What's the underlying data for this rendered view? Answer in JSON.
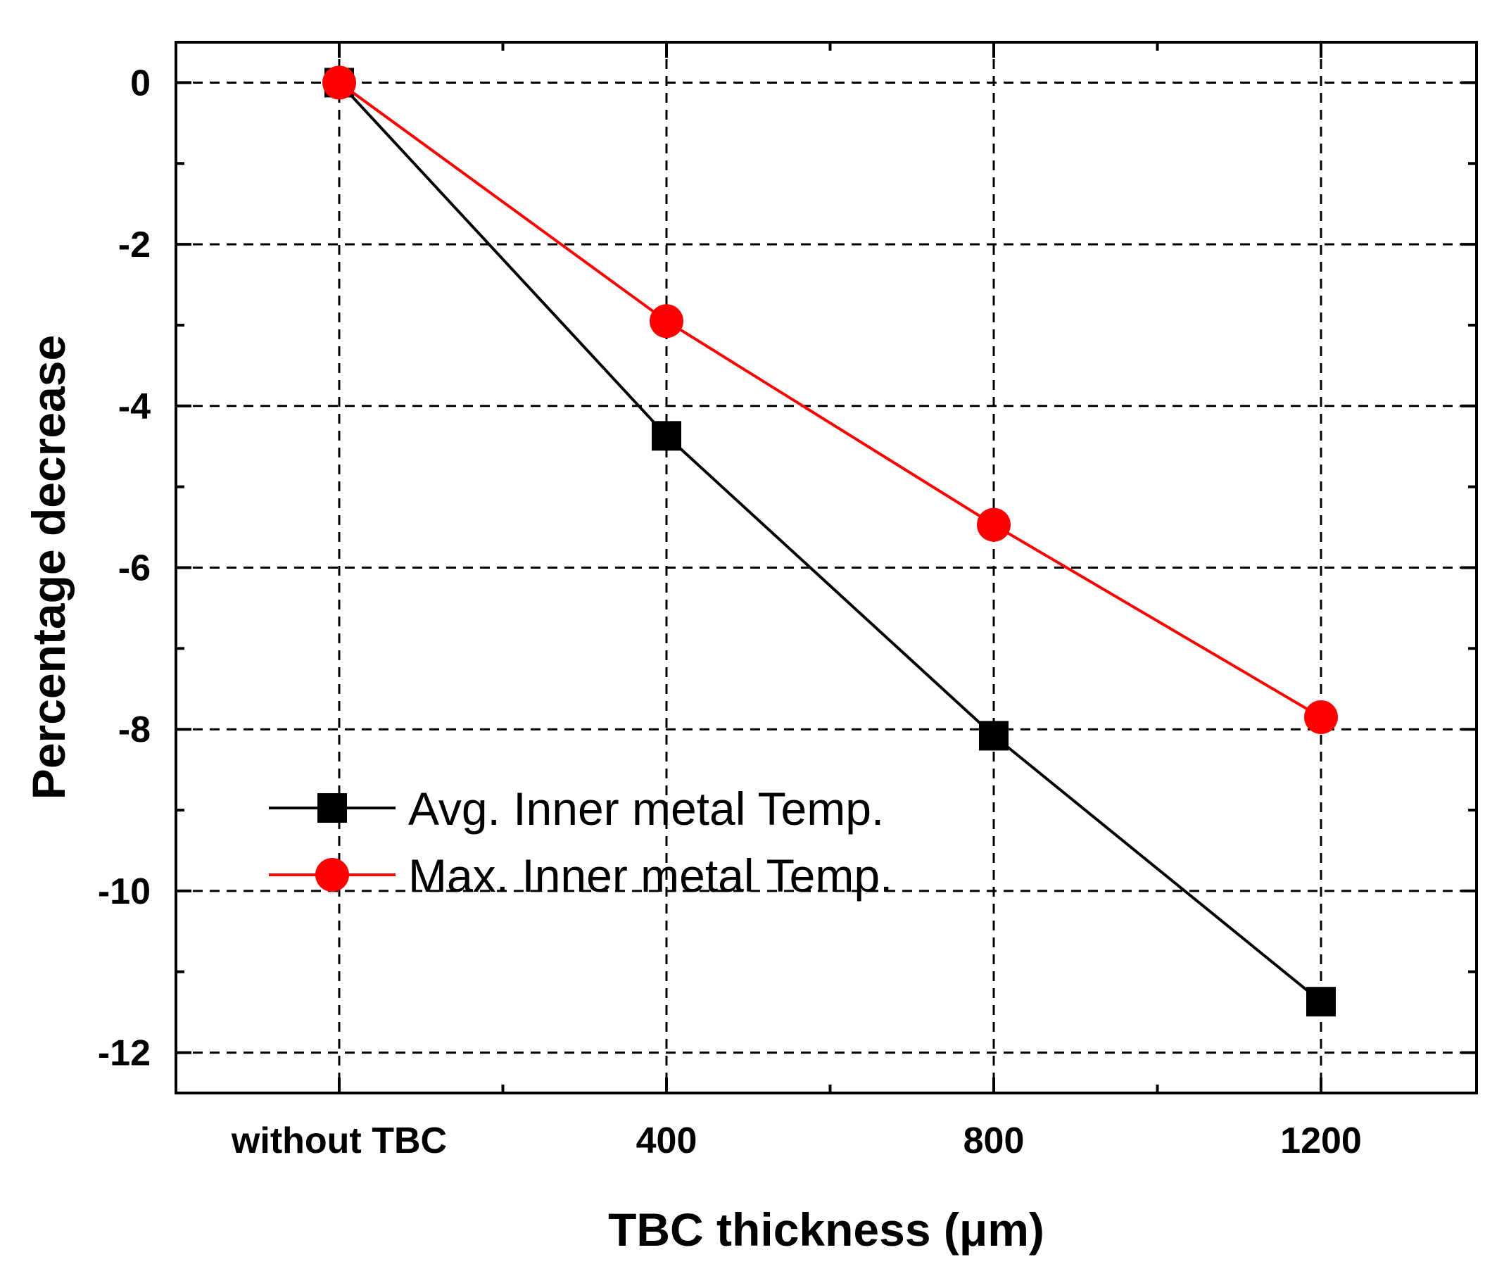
{
  "chart_data": {
    "type": "line",
    "title": "",
    "xlabel": "TBC thickness (μm)",
    "ylabel": "Percentage decrease",
    "categories": [
      "without TBC",
      "400",
      "800",
      "1200"
    ],
    "ylim": [
      -12.5,
      0.5
    ],
    "yticks": [
      0,
      -2,
      -4,
      -6,
      -8,
      -10,
      -12
    ],
    "ytick_labels": [
      "0",
      "-2",
      "-4",
      "-6",
      "-8",
      "-10",
      "-12"
    ],
    "grid": true,
    "legend_position": "lower-left",
    "series": [
      {
        "name": "Avg. Inner metal Temp.",
        "marker": "square",
        "color": "#000000",
        "values": [
          0,
          -4.37,
          -8.08,
          -11.37
        ]
      },
      {
        "name": "Max. Inner metal Temp.",
        "marker": "circle",
        "color": "#ff0000",
        "values": [
          0,
          -2.95,
          -5.47,
          -7.85
        ]
      }
    ]
  }
}
